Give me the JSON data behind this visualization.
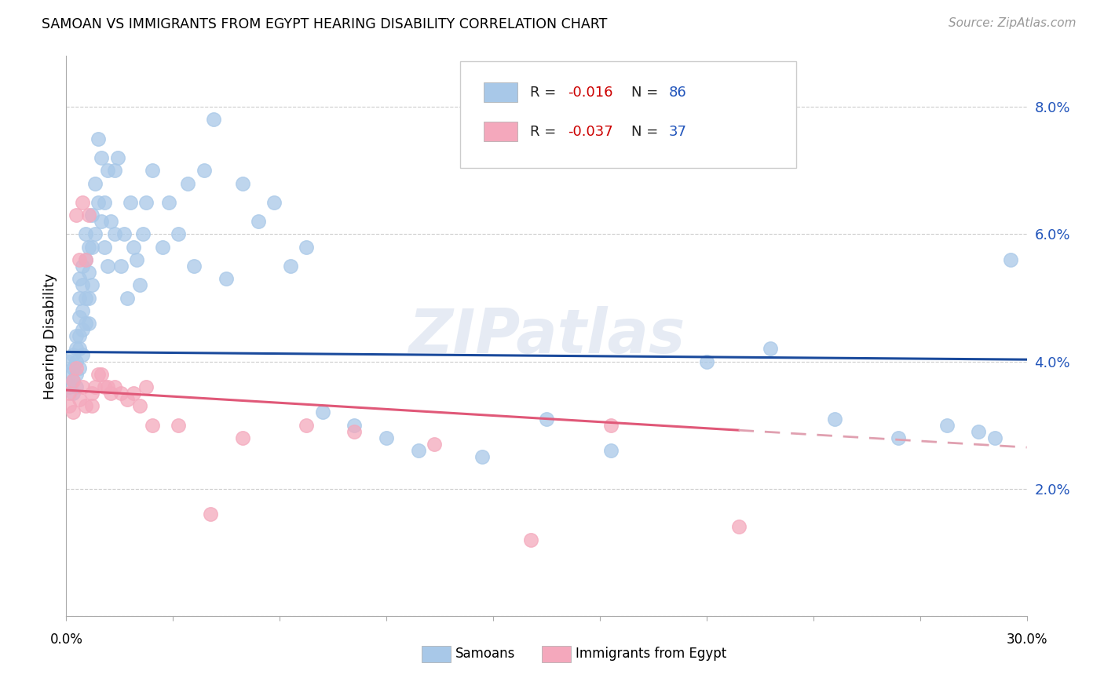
{
  "title": "SAMOAN VS IMMIGRANTS FROM EGYPT HEARING DISABILITY CORRELATION CHART",
  "source": "Source: ZipAtlas.com",
  "ylabel": "Hearing Disability",
  "xlim": [
    0.0,
    0.3
  ],
  "ylim": [
    0.0,
    0.088
  ],
  "yticks": [
    0.0,
    0.02,
    0.04,
    0.06,
    0.08
  ],
  "ytick_labels": [
    "",
    "2.0%",
    "4.0%",
    "6.0%",
    "8.0%"
  ],
  "samoans_x": [
    0.001,
    0.001,
    0.001,
    0.002,
    0.002,
    0.002,
    0.002,
    0.003,
    0.003,
    0.003,
    0.003,
    0.003,
    0.004,
    0.004,
    0.004,
    0.004,
    0.004,
    0.004,
    0.005,
    0.005,
    0.005,
    0.005,
    0.005,
    0.006,
    0.006,
    0.006,
    0.006,
    0.007,
    0.007,
    0.007,
    0.007,
    0.008,
    0.008,
    0.008,
    0.009,
    0.009,
    0.01,
    0.01,
    0.011,
    0.011,
    0.012,
    0.012,
    0.013,
    0.013,
    0.014,
    0.015,
    0.015,
    0.016,
    0.017,
    0.018,
    0.019,
    0.02,
    0.021,
    0.022,
    0.023,
    0.024,
    0.025,
    0.027,
    0.03,
    0.032,
    0.035,
    0.038,
    0.04,
    0.043,
    0.046,
    0.05,
    0.055,
    0.06,
    0.065,
    0.07,
    0.075,
    0.08,
    0.09,
    0.1,
    0.11,
    0.13,
    0.15,
    0.17,
    0.2,
    0.22,
    0.24,
    0.26,
    0.275,
    0.285,
    0.29,
    0.295
  ],
  "samoans_y": [
    0.038,
    0.04,
    0.036,
    0.041,
    0.039,
    0.037,
    0.035,
    0.044,
    0.042,
    0.04,
    0.038,
    0.036,
    0.053,
    0.05,
    0.047,
    0.044,
    0.042,
    0.039,
    0.055,
    0.052,
    0.048,
    0.045,
    0.041,
    0.06,
    0.056,
    0.05,
    0.046,
    0.058,
    0.054,
    0.05,
    0.046,
    0.063,
    0.058,
    0.052,
    0.068,
    0.06,
    0.075,
    0.065,
    0.072,
    0.062,
    0.065,
    0.058,
    0.07,
    0.055,
    0.062,
    0.07,
    0.06,
    0.072,
    0.055,
    0.06,
    0.05,
    0.065,
    0.058,
    0.056,
    0.052,
    0.06,
    0.065,
    0.07,
    0.058,
    0.065,
    0.06,
    0.068,
    0.055,
    0.07,
    0.078,
    0.053,
    0.068,
    0.062,
    0.065,
    0.055,
    0.058,
    0.032,
    0.03,
    0.028,
    0.026,
    0.025,
    0.031,
    0.026,
    0.04,
    0.042,
    0.031,
    0.028,
    0.03,
    0.029,
    0.028,
    0.056
  ],
  "egypt_x": [
    0.001,
    0.001,
    0.002,
    0.002,
    0.003,
    0.003,
    0.004,
    0.004,
    0.005,
    0.005,
    0.006,
    0.006,
    0.007,
    0.008,
    0.008,
    0.009,
    0.01,
    0.011,
    0.012,
    0.013,
    0.014,
    0.015,
    0.017,
    0.019,
    0.021,
    0.023,
    0.025,
    0.027,
    0.035,
    0.045,
    0.055,
    0.075,
    0.09,
    0.115,
    0.145,
    0.17,
    0.21
  ],
  "egypt_y": [
    0.035,
    0.033,
    0.037,
    0.032,
    0.039,
    0.063,
    0.034,
    0.056,
    0.036,
    0.065,
    0.033,
    0.056,
    0.063,
    0.035,
    0.033,
    0.036,
    0.038,
    0.038,
    0.036,
    0.036,
    0.035,
    0.036,
    0.035,
    0.034,
    0.035,
    0.033,
    0.036,
    0.03,
    0.03,
    0.016,
    0.028,
    0.03,
    0.029,
    0.027,
    0.012,
    0.03,
    0.014
  ],
  "samoan_color": "#A8C8E8",
  "egypt_color": "#F4A8BC",
  "samoan_line_color": "#1A4A9C",
  "egypt_line_solid_color": "#E05878",
  "egypt_line_dash_color": "#E0A0B0",
  "R_samoan": -0.016,
  "N_samoan": 86,
  "R_egypt": -0.037,
  "N_egypt": 37,
  "legend_label_samoan": "Samoans",
  "legend_label_egypt": "Immigrants from Egypt",
  "watermark": "ZIPatlas",
  "background_color": "#ffffff",
  "grid_color": "#cccccc",
  "samoan_line_intercept": 0.0415,
  "samoan_line_slope": -0.004,
  "egypt_line_intercept": 0.0355,
  "egypt_line_slope": -0.03
}
